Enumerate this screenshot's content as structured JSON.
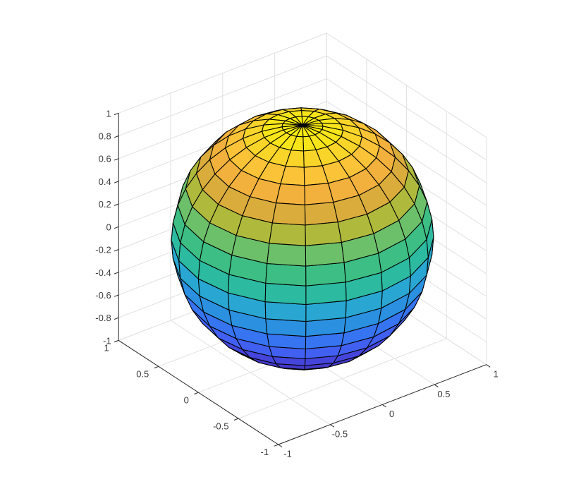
{
  "chart_data": {
    "type": "surface",
    "title": "",
    "xlabel": "",
    "ylabel": "",
    "zlabel": "",
    "description": "MATLAB-style 3D surf plot of a unit sphere with parula colormap, flat shading by z, black mesh edges, grid on",
    "surface": {
      "kind": "unit_sphere",
      "segments": 20,
      "radius": 1,
      "center": [
        0,
        0,
        0
      ],
      "color_by": "z"
    },
    "view": {
      "projection": "orthographic",
      "azimuth_deg": -37.5,
      "elevation_deg": 30
    },
    "axes": {
      "x": {
        "range": [
          -1,
          1
        ],
        "tick_values": [
          -1,
          -0.5,
          0,
          0.5,
          1
        ],
        "tick_labels": [
          "-1",
          "-0.5",
          "0",
          "0.5",
          "1"
        ]
      },
      "y": {
        "range": [
          -1,
          1
        ],
        "tick_values": [
          1,
          0.5,
          0,
          -0.5,
          -1
        ],
        "tick_labels": [
          "1",
          "0.5",
          "0",
          "-0.5",
          "-1"
        ]
      },
      "z": {
        "range": [
          -1,
          1
        ],
        "tick_values": [
          1,
          0.8,
          0.6,
          0.4,
          0.2,
          0,
          -0.2,
          -0.4,
          -0.6,
          -0.8,
          -1
        ],
        "tick_labels": [
          "1",
          "0.8",
          "0.6",
          "0.4",
          "0.2",
          "0",
          "-0.2",
          "-0.4",
          "-0.6",
          "-0.8",
          "-1"
        ]
      }
    },
    "grid": {
      "visible": true,
      "color": "#e0e0e0"
    },
    "style": {
      "background": "#ffffff",
      "axis_color": "#262626",
      "tick_label_color": "#3a3a3a",
      "edge_color": "#000000",
      "colormap_name": "parula",
      "band_colors_bottom_to_top": [
        "#3e26a8",
        "#3e27a9",
        "#3f2aae",
        "#4030b8",
        "#4339c9",
        "#4545dc",
        "#4160f1",
        "#3674f1",
        "#2b90e0",
        "#29a7d2",
        "#2cbaa1",
        "#3dbe84",
        "#6cc06a",
        "#afba3d",
        "#daac3c",
        "#f2b13c",
        "#fac338",
        "#f9d529",
        "#f7e51a",
        "#f8ec10"
      ]
    }
  }
}
